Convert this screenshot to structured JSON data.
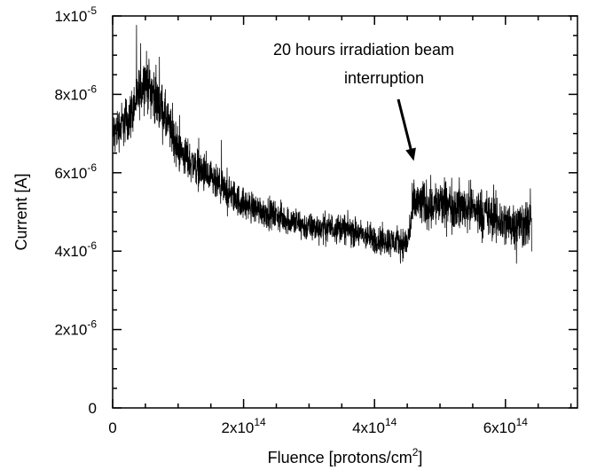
{
  "chart_data": {
    "type": "line",
    "title": "",
    "xlabel": {
      "prefix": "Fluence [protons/cm",
      "sup": "2",
      "suffix": "]"
    },
    "ylabel": "Current [A]",
    "xlim": [
      0,
      710000000000000.0
    ],
    "ylim": [
      0,
      1e-05
    ],
    "grid": false,
    "x_ticks": [
      {
        "value": 0,
        "label": "0"
      },
      {
        "value": 200000000000000.0,
        "mantissa": "2x10",
        "exp": "14"
      },
      {
        "value": 400000000000000.0,
        "mantissa": "4x10",
        "exp": "14"
      },
      {
        "value": 600000000000000.0,
        "mantissa": "6x10",
        "exp": "14"
      }
    ],
    "y_ticks": [
      {
        "value": 0,
        "label": "0"
      },
      {
        "value": 2e-06,
        "mantissa": "2x10",
        "exp": "-6"
      },
      {
        "value": 4e-06,
        "mantissa": "4x10",
        "exp": "-6"
      },
      {
        "value": 6e-06,
        "mantissa": "6x10",
        "exp": "-6"
      },
      {
        "value": 8e-06,
        "mantissa": "8x10",
        "exp": "-6"
      },
      {
        "value": 1e-05,
        "mantissa": "1x10",
        "exp": "-5"
      }
    ],
    "series": [
      {
        "x": [
          0,
          25000000000000.0,
          50000000000000.0,
          75000000000000.0,
          100000000000000.0,
          150000000000000.0,
          200000000000000.0,
          250000000000000.0,
          300000000000000.0,
          350000000000000.0,
          400000000000000.0,
          450000000000000.0,
          460000000000000.0,
          500000000000000.0,
          550000000000000.0,
          600000000000000.0,
          640000000000000.0
        ],
        "mean": [
          7e-06,
          7.4e-06,
          8.4e-06,
          7.6e-06,
          6.6e-06,
          5.8e-06,
          5.2e-06,
          4.9e-06,
          4.6e-06,
          4.6e-06,
          4.3e-06,
          4.2e-06,
          5.2e-06,
          5.2e-06,
          5.1e-06,
          4.7e-06,
          4.7e-06
        ],
        "spread": [
          8e-07,
          9e-07,
          1e-06,
          1e-06,
          8e-07,
          7e-07,
          6e-07,
          5.5e-07,
          5.5e-07,
          5.5e-07,
          5.5e-07,
          6e-07,
          9e-07,
          9e-07,
          9e-07,
          9e-07,
          9e-07
        ]
      }
    ],
    "annotation": {
      "lines": [
        "20 hours irradiation beam",
        "interruption"
      ],
      "arrow_to": {
        "x": 460000000000000.0,
        "y": 6.3e-06
      }
    }
  }
}
